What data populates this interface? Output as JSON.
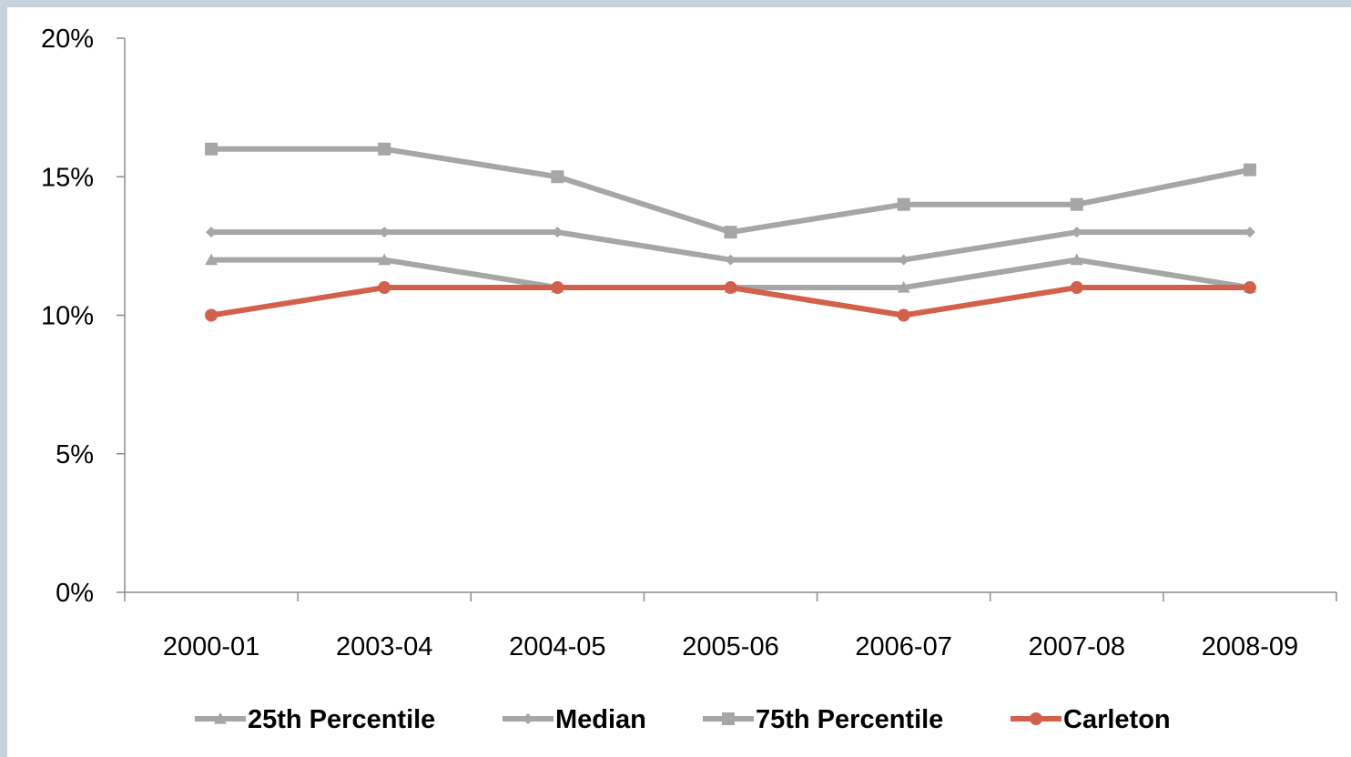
{
  "chart_data": {
    "type": "line",
    "title": "",
    "xlabel": "",
    "ylabel": "",
    "categories": [
      "2000-01",
      "2003-04",
      "2004-05",
      "2005-06",
      "2006-07",
      "2007-08",
      "2008-09"
    ],
    "ylim": [
      0,
      20
    ],
    "yticks": [
      0,
      5,
      10,
      15,
      20
    ],
    "ytick_labels": [
      "0%",
      "5%",
      "10%",
      "15%",
      "20%"
    ],
    "unit": "%",
    "grid": false,
    "legend_position": "bottom",
    "series": [
      {
        "name": "25th Percentile",
        "marker": "triangle",
        "color": "#a6a6a6",
        "values": [
          12,
          12,
          11,
          11,
          11,
          12,
          11
        ]
      },
      {
        "name": "Median",
        "marker": "diamond",
        "color": "#a6a6a6",
        "values": [
          13,
          13,
          13,
          12,
          12,
          13,
          13
        ]
      },
      {
        "name": "75th Percentile",
        "marker": "square",
        "color": "#a6a6a6",
        "values": [
          16,
          16,
          15,
          13,
          14,
          14,
          15.25
        ]
      },
      {
        "name": "Carleton",
        "marker": "circle",
        "color": "#d3604a",
        "values": [
          10,
          11,
          11,
          11,
          10,
          11,
          11
        ]
      }
    ]
  }
}
